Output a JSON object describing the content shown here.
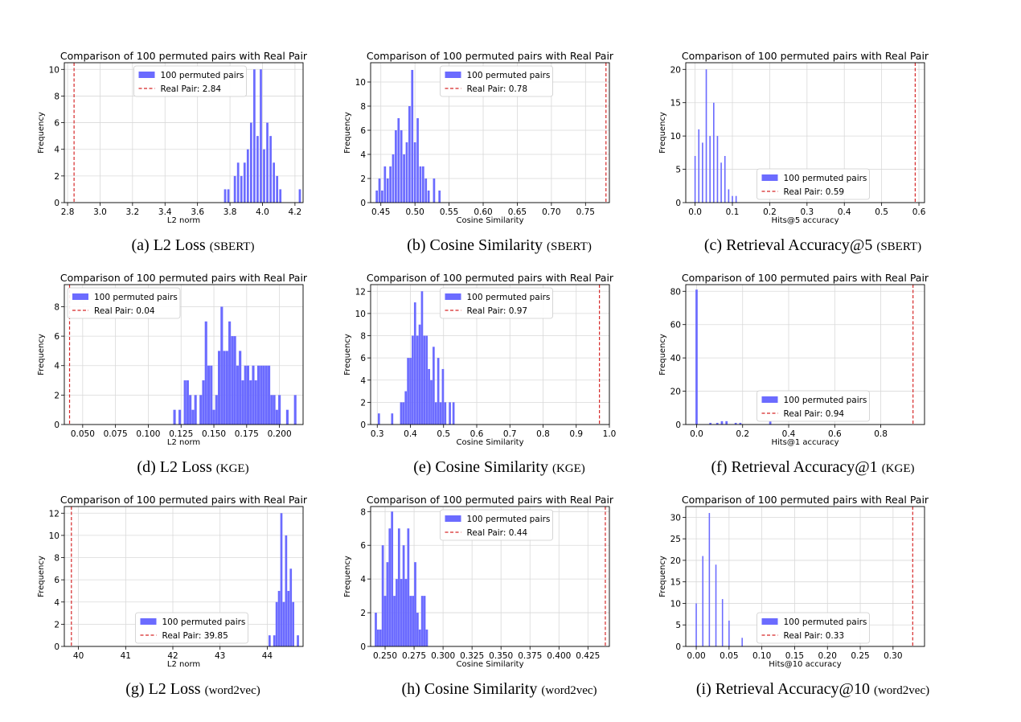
{
  "chart_data": [
    {
      "type": "bar",
      "title": "Comparison of 100 permuted pairs with Real Pair",
      "xlabel": "L2 norm",
      "ylabel": "Frequency",
      "caption": {
        "main": "(a) L2 Loss",
        "sub": "(SBERT)"
      },
      "xlim": [
        2.78,
        4.25
      ],
      "ylim": [
        0,
        10.5
      ],
      "xticks": [
        2.8,
        3.0,
        3.2,
        3.4,
        3.6,
        3.8,
        4.0,
        4.2
      ],
      "xtick_labels": [
        "2.8",
        "3.0",
        "3.2",
        "3.4",
        "3.6",
        "3.8",
        "4.0",
        "4.2"
      ],
      "yticks": [
        0,
        2,
        4,
        6,
        8,
        10
      ],
      "ytick_labels": [
        "0",
        "2",
        "4",
        "6",
        "8",
        "10"
      ],
      "bin_width": 0.0135,
      "bins": [
        [
          3.77,
          1
        ],
        [
          3.79,
          1
        ],
        [
          3.83,
          2
        ],
        [
          3.85,
          3
        ],
        [
          3.87,
          2
        ],
        [
          3.89,
          3
        ],
        [
          3.91,
          4
        ],
        [
          3.93,
          6
        ],
        [
          3.95,
          10
        ],
        [
          3.97,
          5
        ],
        [
          3.99,
          10
        ],
        [
          4.01,
          4
        ],
        [
          4.03,
          6
        ],
        [
          4.05,
          5
        ],
        [
          4.07,
          3
        ],
        [
          4.09,
          2
        ],
        [
          4.11,
          1
        ],
        [
          4.23,
          1
        ]
      ],
      "real_pair": 2.84,
      "legend": {
        "loc": "upper-center",
        "hist_label": "100 permuted pairs",
        "line_label": "Real Pair: 2.84"
      },
      "grid": true
    },
    {
      "type": "bar",
      "title": "Comparison of 100 permuted pairs with Real Pair",
      "xlabel": "Cosine Similarity",
      "ylabel": "Frequency",
      "caption": {
        "main": "(b) Cosine Similarity",
        "sub": "(SBERT)"
      },
      "xlim": [
        0.435,
        0.785
      ],
      "ylim": [
        0,
        11.6
      ],
      "xticks": [
        0.45,
        0.5,
        0.55,
        0.6,
        0.65,
        0.7,
        0.75
      ],
      "xtick_labels": [
        "0.45",
        "0.50",
        "0.55",
        "0.60",
        "0.65",
        "0.70",
        "0.75"
      ],
      "yticks": [
        0,
        2,
        4,
        6,
        8,
        10
      ],
      "ytick_labels": [
        "0",
        "2",
        "4",
        "6",
        "8",
        "10"
      ],
      "bin_width": 0.0032,
      "bins": [
        [
          0.444,
          1
        ],
        [
          0.448,
          2
        ],
        [
          0.452,
          1
        ],
        [
          0.456,
          3
        ],
        [
          0.46,
          2
        ],
        [
          0.464,
          3
        ],
        [
          0.468,
          4
        ],
        [
          0.472,
          6
        ],
        [
          0.476,
          7
        ],
        [
          0.48,
          6
        ],
        [
          0.484,
          4
        ],
        [
          0.488,
          5
        ],
        [
          0.492,
          8
        ],
        [
          0.496,
          11
        ],
        [
          0.5,
          5
        ],
        [
          0.504,
          7
        ],
        [
          0.508,
          3
        ],
        [
          0.512,
          3
        ],
        [
          0.516,
          2
        ],
        [
          0.52,
          1
        ],
        [
          0.528,
          2
        ],
        [
          0.536,
          1
        ]
      ],
      "real_pair": 0.78,
      "legend": {
        "loc": "upper-center",
        "hist_label": "100 permuted pairs",
        "line_label": "Real Pair: 0.78"
      },
      "grid": true
    },
    {
      "type": "bar",
      "title": "Comparison of 100 permuted pairs with Real Pair",
      "xlabel": "Hits@5 accuracy",
      "ylabel": "Frequency",
      "caption": {
        "main": "(c) Retrieval Accuracy@5",
        "sub": "(SBERT)"
      },
      "xlim": [
        -0.025,
        0.615
      ],
      "ylim": [
        0,
        21
      ],
      "xticks": [
        0.0,
        0.1,
        0.2,
        0.3,
        0.4,
        0.5,
        0.6
      ],
      "xtick_labels": [
        "0.0",
        "0.1",
        "0.2",
        "0.3",
        "0.4",
        "0.5",
        "0.6"
      ],
      "yticks": [
        0,
        5,
        10,
        15,
        20
      ],
      "ytick_labels": [
        "0",
        "5",
        "10",
        "15",
        "20"
      ],
      "bin_width": 0.0035,
      "bins": [
        [
          0.0,
          7
        ],
        [
          0.01,
          11
        ],
        [
          0.02,
          9
        ],
        [
          0.03,
          20
        ],
        [
          0.04,
          10
        ],
        [
          0.05,
          15
        ],
        [
          0.06,
          10
        ],
        [
          0.07,
          6
        ],
        [
          0.08,
          7
        ],
        [
          0.09,
          2
        ],
        [
          0.1,
          1
        ],
        [
          0.11,
          1
        ]
      ],
      "real_pair": 0.59,
      "legend": {
        "loc": "lower-center",
        "hist_label": "100 permuted pairs",
        "line_label": "Real Pair: 0.59"
      },
      "grid": true
    },
    {
      "type": "bar",
      "title": "Comparison of 100 permuted pairs with Real Pair",
      "xlabel": "L2 norm",
      "ylabel": "Frequency",
      "caption": {
        "main": "(d) L2 Loss",
        "sub": "(KGE)"
      },
      "xlim": [
        0.036,
        0.218
      ],
      "ylim": [
        0,
        9.5
      ],
      "xticks": [
        0.05,
        0.075,
        0.1,
        0.125,
        0.15,
        0.175,
        0.2
      ],
      "xtick_labels": [
        "0.050",
        "0.075",
        "0.100",
        "0.125",
        "0.150",
        "0.175",
        "0.200"
      ],
      "yticks": [
        0,
        2,
        4,
        6,
        8
      ],
      "ytick_labels": [
        "0",
        "2",
        "4",
        "6",
        "8"
      ],
      "bin_width": 0.0019,
      "bins": [
        [
          0.12,
          1
        ],
        [
          0.124,
          1
        ],
        [
          0.128,
          3
        ],
        [
          0.13,
          3
        ],
        [
          0.132,
          2
        ],
        [
          0.134,
          1
        ],
        [
          0.136,
          2
        ],
        [
          0.14,
          2
        ],
        [
          0.142,
          3
        ],
        [
          0.144,
          7
        ],
        [
          0.146,
          4
        ],
        [
          0.148,
          4
        ],
        [
          0.15,
          1
        ],
        [
          0.152,
          2
        ],
        [
          0.154,
          5
        ],
        [
          0.156,
          8
        ],
        [
          0.158,
          5
        ],
        [
          0.16,
          5
        ],
        [
          0.162,
          7
        ],
        [
          0.164,
          6
        ],
        [
          0.166,
          6
        ],
        [
          0.168,
          4
        ],
        [
          0.17,
          5
        ],
        [
          0.172,
          3
        ],
        [
          0.174,
          4
        ],
        [
          0.176,
          4
        ],
        [
          0.178,
          3
        ],
        [
          0.18,
          4
        ],
        [
          0.182,
          3
        ],
        [
          0.184,
          4
        ],
        [
          0.186,
          4
        ],
        [
          0.188,
          4
        ],
        [
          0.19,
          4
        ],
        [
          0.192,
          4
        ],
        [
          0.194,
          2
        ],
        [
          0.196,
          2
        ],
        [
          0.198,
          1
        ],
        [
          0.2,
          2
        ],
        [
          0.206,
          1
        ],
        [
          0.212,
          2
        ]
      ],
      "real_pair": 0.04,
      "legend": {
        "loc": "upper-left",
        "hist_label": "100 permuted pairs",
        "line_label": "Real Pair: 0.04"
      },
      "grid": true
    },
    {
      "type": "bar",
      "title": "Comparison of 100 permuted pairs with Real Pair",
      "xlabel": "Cosine Similarity",
      "ylabel": "Frequency",
      "caption": {
        "main": "(e) Cosine Similarity",
        "sub": "(KGE)"
      },
      "xlim": [
        0.28,
        1.0
      ],
      "ylim": [
        0,
        12.6
      ],
      "xticks": [
        0.3,
        0.4,
        0.5,
        0.6,
        0.7,
        0.8,
        0.9,
        1.0
      ],
      "xtick_labels": [
        "0.3",
        "0.4",
        "0.5",
        "0.6",
        "0.7",
        "0.8",
        "0.9",
        "1.0"
      ],
      "yticks": [
        0,
        2,
        4,
        6,
        8,
        10,
        12
      ],
      "ytick_labels": [
        "0",
        "2",
        "4",
        "6",
        "8",
        "10",
        "12"
      ],
      "bin_width": 0.0065,
      "bins": [
        [
          0.305,
          1
        ],
        [
          0.345,
          1
        ],
        [
          0.372,
          2
        ],
        [
          0.379,
          2
        ],
        [
          0.386,
          3
        ],
        [
          0.393,
          6
        ],
        [
          0.4,
          6
        ],
        [
          0.407,
          8
        ],
        [
          0.414,
          11
        ],
        [
          0.421,
          8
        ],
        [
          0.428,
          9
        ],
        [
          0.435,
          12
        ],
        [
          0.442,
          8
        ],
        [
          0.449,
          8
        ],
        [
          0.456,
          5
        ],
        [
          0.463,
          4
        ],
        [
          0.47,
          7
        ],
        [
          0.477,
          2
        ],
        [
          0.484,
          6
        ],
        [
          0.491,
          2
        ],
        [
          0.498,
          5
        ],
        [
          0.505,
          2
        ],
        [
          0.519,
          2
        ],
        [
          0.53,
          2
        ]
      ],
      "real_pair": 0.97,
      "legend": {
        "loc": "upper-center",
        "hist_label": "100 permuted pairs",
        "line_label": "Real Pair: 0.97"
      },
      "grid": true
    },
    {
      "type": "bar",
      "title": "Comparison of 100 permuted pairs with Real Pair",
      "xlabel": "Hits@1 accuracy",
      "ylabel": "Frequency",
      "caption": {
        "main": "(f) Retrieval Accuracy@1",
        "sub": "(KGE)"
      },
      "xlim": [
        -0.047,
        0.99
      ],
      "ylim": [
        0,
        84
      ],
      "xticks": [
        0.0,
        0.2,
        0.4,
        0.6,
        0.8
      ],
      "xtick_labels": [
        "0.0",
        "0.2",
        "0.4",
        "0.6",
        "0.8"
      ],
      "yticks": [
        0,
        20,
        40,
        60,
        80
      ],
      "ytick_labels": [
        "0",
        "20",
        "40",
        "60",
        "80"
      ],
      "bin_width": 0.0095,
      "bins": [
        [
          0.0,
          81
        ],
        [
          0.06,
          1
        ],
        [
          0.09,
          1
        ],
        [
          0.11,
          2
        ],
        [
          0.13,
          2
        ],
        [
          0.17,
          1
        ],
        [
          0.19,
          1
        ],
        [
          0.32,
          2
        ]
      ],
      "real_pair": 0.94,
      "legend": {
        "loc": "lower-center",
        "hist_label": "100 permuted pairs",
        "line_label": "Real Pair: 0.94"
      },
      "grid": true
    },
    {
      "type": "bar",
      "title": "Comparison of 100 permuted pairs with Real Pair",
      "xlabel": "L2 norm",
      "ylabel": "Frequency",
      "caption": {
        "main": "(g) L2 Loss",
        "sub": "(word2vec)"
      },
      "xlim": [
        39.7,
        44.76
      ],
      "ylim": [
        0,
        12.6
      ],
      "xticks": [
        40,
        41,
        42,
        43,
        44
      ],
      "xtick_labels": [
        "40",
        "41",
        "42",
        "43",
        "44"
      ],
      "yticks": [
        0,
        2,
        4,
        6,
        8,
        10,
        12
      ],
      "ytick_labels": [
        "0",
        "2",
        "4",
        "6",
        "8",
        "10",
        "12"
      ],
      "bin_width": 0.046,
      "bins": [
        [
          44.05,
          1
        ],
        [
          44.15,
          1
        ],
        [
          44.2,
          4
        ],
        [
          44.25,
          5
        ],
        [
          44.3,
          12
        ],
        [
          44.35,
          4
        ],
        [
          44.4,
          10
        ],
        [
          44.45,
          5
        ],
        [
          44.5,
          7
        ],
        [
          44.55,
          4
        ],
        [
          44.65,
          1
        ]
      ],
      "real_pair": 39.85,
      "legend": {
        "loc": "lower-center",
        "hist_label": "100 permuted pairs",
        "line_label": "Real Pair: 39.85"
      },
      "grid": true
    },
    {
      "type": "bar",
      "title": "Comparison of 100 permuted pairs with Real Pair",
      "xlabel": "Cosine Similarity",
      "ylabel": "Frequency",
      "caption": {
        "main": "(h) Cosine Similarity",
        "sub": "(word2vec)"
      },
      "xlim": [
        0.2375,
        0.4435
      ],
      "ylim": [
        0,
        8.3
      ],
      "xticks": [
        0.25,
        0.275,
        0.3,
        0.325,
        0.35,
        0.375,
        0.4,
        0.425
      ],
      "xtick_labels": [
        "0.250",
        "0.275",
        "0.300",
        "0.325",
        "0.350",
        "0.375",
        "0.400",
        "0.425"
      ],
      "yticks": [
        0,
        2,
        4,
        6,
        8
      ],
      "ytick_labels": [
        "0",
        "2",
        "4",
        "6",
        "8"
      ],
      "bin_width": 0.0019,
      "bins": [
        [
          0.242,
          2
        ],
        [
          0.244,
          1
        ],
        [
          0.246,
          1
        ],
        [
          0.248,
          6
        ],
        [
          0.25,
          3
        ],
        [
          0.252,
          5
        ],
        [
          0.254,
          7
        ],
        [
          0.256,
          8
        ],
        [
          0.258,
          3
        ],
        [
          0.26,
          4
        ],
        [
          0.262,
          7
        ],
        [
          0.264,
          4
        ],
        [
          0.266,
          6
        ],
        [
          0.268,
          4
        ],
        [
          0.27,
          7
        ],
        [
          0.272,
          3
        ],
        [
          0.274,
          3
        ],
        [
          0.276,
          5
        ],
        [
          0.278,
          2
        ],
        [
          0.28,
          1
        ],
        [
          0.282,
          3
        ],
        [
          0.284,
          3
        ],
        [
          0.286,
          1
        ]
      ],
      "real_pair": 0.44,
      "legend": {
        "loc": "upper-center",
        "hist_label": "100 permuted pairs",
        "line_label": "Real Pair: 0.44"
      },
      "grid": true
    },
    {
      "type": "bar",
      "title": "Comparison of 100 permuted pairs with Real Pair",
      "xlabel": "Hits@10 accuracy",
      "ylabel": "Frequency",
      "caption": {
        "main": "(i) Retrieval Accuracy@10",
        "sub": "(word2vec)"
      },
      "xlim": [
        -0.016,
        0.348
      ],
      "ylim": [
        0,
        32.5
      ],
      "xticks": [
        0.0,
        0.05,
        0.1,
        0.15,
        0.2,
        0.25,
        0.3
      ],
      "xtick_labels": [
        "0.00",
        "0.05",
        "0.10",
        "0.15",
        "0.20",
        "0.25",
        "0.30"
      ],
      "yticks": [
        0,
        5,
        10,
        15,
        20,
        25,
        30
      ],
      "ytick_labels": [
        "0",
        "5",
        "10",
        "15",
        "20",
        "25",
        "30"
      ],
      "bin_width": 0.0019,
      "bins": [
        [
          0.0,
          10
        ],
        [
          0.01,
          21
        ],
        [
          0.02,
          31
        ],
        [
          0.03,
          19
        ],
        [
          0.04,
          11
        ],
        [
          0.05,
          6
        ],
        [
          0.07,
          2
        ]
      ],
      "real_pair": 0.33,
      "legend": {
        "loc": "lower-center",
        "hist_label": "100 permuted pairs",
        "line_label": "Real Pair: 0.33"
      },
      "grid": true
    }
  ],
  "colors": {
    "bar": "#6b6bff",
    "real_line": "#d62728",
    "grid": "#d9d9d9",
    "axis": "#000000"
  }
}
